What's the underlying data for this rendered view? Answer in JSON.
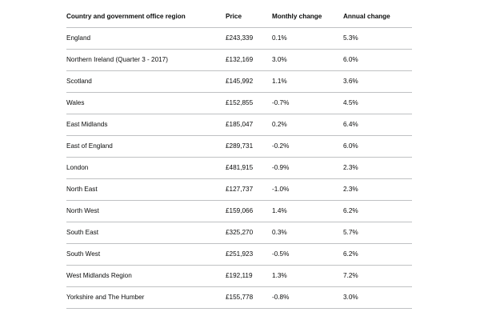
{
  "table": {
    "headers": [
      "Country and government office region",
      "Price",
      "Monthly change",
      "Annual change"
    ],
    "rows": [
      [
        "England",
        "£243,339",
        "0.1%",
        "5.3%"
      ],
      [
        "Northern Ireland (Quarter 3 - 2017)",
        "£132,169",
        "3.0%",
        "6.0%"
      ],
      [
        "Scotland",
        "£145,992",
        "1.1%",
        "3.6%"
      ],
      [
        "Wales",
        "£152,855",
        "-0.7%",
        "4.5%"
      ],
      [
        "East Midlands",
        "£185,047",
        "0.2%",
        "6.4%"
      ],
      [
        "East of England",
        "£289,731",
        "-0.2%",
        "6.0%"
      ],
      [
        "London",
        "£481,915",
        "-0.9%",
        "2.3%"
      ],
      [
        "North East",
        "£127,737",
        "-1.0%",
        "2.3%"
      ],
      [
        "North West",
        "£159,066",
        "1.4%",
        "6.2%"
      ],
      [
        "South East",
        "£325,270",
        "0.3%",
        "5.7%"
      ],
      [
        "South West",
        "£251,923",
        "-0.5%",
        "6.2%"
      ],
      [
        "West Midlands Region",
        "£192,119",
        "1.3%",
        "7.2%"
      ],
      [
        "Yorkshire and The Humber",
        "£155,778",
        "-0.8%",
        "3.0%"
      ]
    ]
  }
}
